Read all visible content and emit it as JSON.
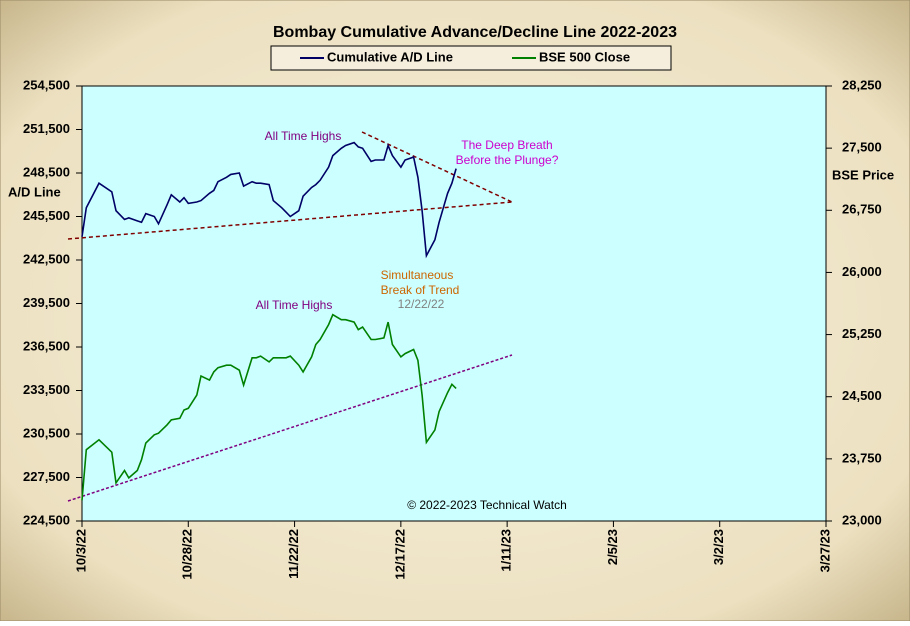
{
  "chart_data": {
    "type": "line",
    "title": "Bombay Cumulative Advance/Decline Line 2022-2023",
    "y_label": "A/D Line",
    "y2_label": "BSE Price",
    "x": [
      "2022-10-03",
      "2022-10-04",
      "2022-10-07",
      "2022-10-10",
      "2022-10-11",
      "2022-10-13",
      "2022-10-14",
      "2022-10-16",
      "2022-10-17",
      "2022-10-18",
      "2022-10-20",
      "2022-10-21",
      "2022-10-23",
      "2022-10-24",
      "2022-10-26",
      "2022-10-27",
      "2022-10-28",
      "2022-10-30",
      "2022-10-31",
      "2022-11-02",
      "2022-11-03",
      "2022-11-04",
      "2022-11-06",
      "2022-11-07",
      "2022-11-09",
      "2022-11-10",
      "2022-11-12",
      "2022-11-13",
      "2022-11-14",
      "2022-11-16",
      "2022-11-17",
      "2022-11-19",
      "2022-11-20",
      "2022-11-21",
      "2022-11-23",
      "2022-11-24",
      "2022-11-26",
      "2022-11-27",
      "2022-11-28",
      "2022-11-30",
      "2022-12-01",
      "2022-12-03",
      "2022-12-04",
      "2022-12-06",
      "2022-12-07",
      "2022-12-08",
      "2022-12-10",
      "2022-12-11",
      "2022-12-13",
      "2022-12-14",
      "2022-12-15",
      "2022-12-17",
      "2022-12-18",
      "2022-12-20",
      "2022-12-21",
      "2022-12-22",
      "2022-12-23",
      "2022-12-25",
      "2022-12-26",
      "2022-12-28",
      "2022-12-29",
      "2022-12-30"
    ],
    "series": [
      {
        "name": "Cumulative A/D Line",
        "color": "#000066",
        "axis": "y",
        "values": [
          244100,
          246100,
          247800,
          247200,
          245900,
          245300,
          245400,
          245200,
          245100,
          245700,
          245500,
          245000,
          246300,
          247000,
          246500,
          246800,
          246400,
          246500,
          246600,
          247100,
          247300,
          247900,
          248200,
          248400,
          248500,
          247600,
          247900,
          247800,
          247800,
          247700,
          246600,
          246100,
          245800,
          245500,
          245900,
          246900,
          247500,
          247700,
          248000,
          248900,
          249700,
          250200,
          250400,
          250600,
          250300,
          250200,
          249300,
          249400,
          249400,
          250400,
          249700,
          248900,
          249400,
          249600,
          248200,
          245900,
          242800,
          243900,
          245100,
          247100,
          247800,
          248800
        ]
      },
      {
        "name": "BSE 500 Close",
        "color": "#008000",
        "axis": "y2",
        "values": [
          23250,
          23860,
          23980,
          23830,
          23460,
          23610,
          23520,
          23610,
          23740,
          23940,
          24040,
          24060,
          24160,
          24220,
          24240,
          24340,
          24360,
          24520,
          24750,
          24700,
          24800,
          24850,
          24880,
          24880,
          24820,
          24640,
          24970,
          24970,
          24990,
          24920,
          24970,
          24970,
          24970,
          24990,
          24880,
          24800,
          24980,
          25130,
          25190,
          25370,
          25490,
          25430,
          25430,
          25400,
          25310,
          25340,
          25190,
          25190,
          25210,
          25400,
          25130,
          24980,
          25020,
          25070,
          24940,
          24520,
          23950,
          24100,
          24320,
          24550,
          24650,
          24600
        ]
      }
    ],
    "xlim": [
      "2022-10-03",
      "2023-03-27"
    ],
    "xticks": [
      {
        "value": "2022-10-03",
        "label": "10/3/22"
      },
      {
        "value": "2022-10-28",
        "label": "10/28/22"
      },
      {
        "value": "2022-11-22",
        "label": "11/22/22"
      },
      {
        "value": "2022-12-17",
        "label": "12/17/22"
      },
      {
        "value": "2023-01-11",
        "label": "1/11/23"
      },
      {
        "value": "2023-02-05",
        "label": "2/5/23"
      },
      {
        "value": "2023-03-02",
        "label": "3/2/23"
      },
      {
        "value": "2023-03-27",
        "label": "3/27/23"
      }
    ],
    "ylim": [
      224500,
      254500
    ],
    "yticks": [
      {
        "value": 224500,
        "label": "224,500"
      },
      {
        "value": 227500,
        "label": "227,500"
      },
      {
        "value": 230500,
        "label": "230,500"
      },
      {
        "value": 233500,
        "label": "233,500"
      },
      {
        "value": 236500,
        "label": "236,500"
      },
      {
        "value": 239500,
        "label": "239,500"
      },
      {
        "value": 242500,
        "label": "242,500"
      },
      {
        "value": 245500,
        "label": "245,500"
      },
      {
        "value": 248500,
        "label": "248,500"
      },
      {
        "value": 251500,
        "label": "251,500"
      },
      {
        "value": 254500,
        "label": "254,500"
      }
    ],
    "y2lim": [
      23000,
      28250
    ],
    "y2ticks": [
      {
        "value": 23000,
        "label": "23,000"
      },
      {
        "value": 23750,
        "label": "23,750"
      },
      {
        "value": 24500,
        "label": "24,500"
      },
      {
        "value": 25250,
        "label": "25,250"
      },
      {
        "value": 26000,
        "label": "26,000"
      },
      {
        "value": 26750,
        "label": "26,750"
      },
      {
        "value": 27500,
        "label": "27,500"
      },
      {
        "value": 28250,
        "label": "28,250"
      }
    ],
    "annotations": [
      "All Time Highs",
      "All Time Highs",
      "The Deep Breath",
      "Before the Plunge?",
      "Simultaneous",
      "Break of Trend",
      "12/22/22"
    ],
    "copyright": "© 2022-2023  Technical Watch",
    "legend": "top"
  }
}
